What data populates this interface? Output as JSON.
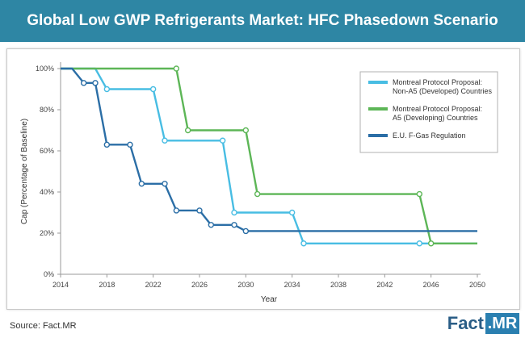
{
  "header": {
    "title": "Global Low GWP Refrigerants Market: HFC Phasedown Scenario"
  },
  "source": "Source: Fact.MR",
  "logo": {
    "part1": "Fact",
    "part2": ".MR"
  },
  "colors": {
    "header_bg": "#2e86a4",
    "series_nona5": "#48bde3",
    "series_a5": "#5db657",
    "series_eu": "#2b6ea6"
  },
  "chart_data": {
    "type": "line",
    "xlabel": "Year",
    "ylabel": "Cap (Percentage of Baseline)",
    "xlim": [
      2014,
      2050
    ],
    "ylim": [
      0,
      100
    ],
    "x_ticks": [
      2014,
      2018,
      2022,
      2026,
      2030,
      2034,
      2038,
      2042,
      2046,
      2050
    ],
    "y_ticks": [
      0,
      20,
      40,
      60,
      80,
      100
    ],
    "y_tick_labels": [
      "0%",
      "20%",
      "40%",
      "60%",
      "80%",
      "100%"
    ],
    "grid": false,
    "legend_position": "top-right",
    "series": [
      {
        "name": "Montreal Protocol Proposal: Non-A5 (Developed) Countries",
        "legend_lines": [
          "Montreal Protocol Proposal:",
          "Non-A5 (Developed) Countries"
        ],
        "color": "#48bde3",
        "points": [
          [
            2014,
            100
          ],
          [
            2017,
            100
          ],
          [
            2018,
            90
          ],
          [
            2022,
            90
          ],
          [
            2023,
            65
          ],
          [
            2028,
            65
          ],
          [
            2029,
            30
          ],
          [
            2034,
            30
          ],
          [
            2035,
            15
          ],
          [
            2045,
            15
          ],
          [
            2050,
            15
          ]
        ],
        "markers": [
          [
            2018,
            90
          ],
          [
            2022,
            90
          ],
          [
            2023,
            65
          ],
          [
            2028,
            65
          ],
          [
            2029,
            30
          ],
          [
            2034,
            30
          ],
          [
            2035,
            15
          ],
          [
            2045,
            15
          ]
        ]
      },
      {
        "name": "Montreal Protocol Proposal: A5 (Developing) Countries",
        "legend_lines": [
          "Montreal Protocol Proposal:",
          "A5 (Developing) Countries"
        ],
        "color": "#5db657",
        "points": [
          [
            2014,
            100
          ],
          [
            2024,
            100
          ],
          [
            2025,
            70
          ],
          [
            2030,
            70
          ],
          [
            2031,
            39
          ],
          [
            2045,
            39
          ],
          [
            2046,
            15
          ],
          [
            2050,
            15
          ]
        ],
        "markers": [
          [
            2024,
            100
          ],
          [
            2025,
            70
          ],
          [
            2030,
            70
          ],
          [
            2031,
            39
          ],
          [
            2045,
            39
          ],
          [
            2046,
            15
          ]
        ]
      },
      {
        "name": "E.U. F-Gas Regulation",
        "legend_lines": [
          "E.U. F-Gas Regulation"
        ],
        "color": "#2b6ea6",
        "points": [
          [
            2014,
            100
          ],
          [
            2015,
            100
          ],
          [
            2016,
            93
          ],
          [
            2017,
            93
          ],
          [
            2018,
            63
          ],
          [
            2020,
            63
          ],
          [
            2021,
            44
          ],
          [
            2023,
            44
          ],
          [
            2024,
            31
          ],
          [
            2026,
            31
          ],
          [
            2027,
            24
          ],
          [
            2029,
            24
          ],
          [
            2030,
            21
          ],
          [
            2050,
            21
          ]
        ],
        "markers": [
          [
            2016,
            93
          ],
          [
            2017,
            93
          ],
          [
            2018,
            63
          ],
          [
            2020,
            63
          ],
          [
            2021,
            44
          ],
          [
            2023,
            44
          ],
          [
            2024,
            31
          ],
          [
            2026,
            31
          ],
          [
            2027,
            24
          ],
          [
            2029,
            24
          ],
          [
            2030,
            21
          ]
        ]
      }
    ]
  }
}
